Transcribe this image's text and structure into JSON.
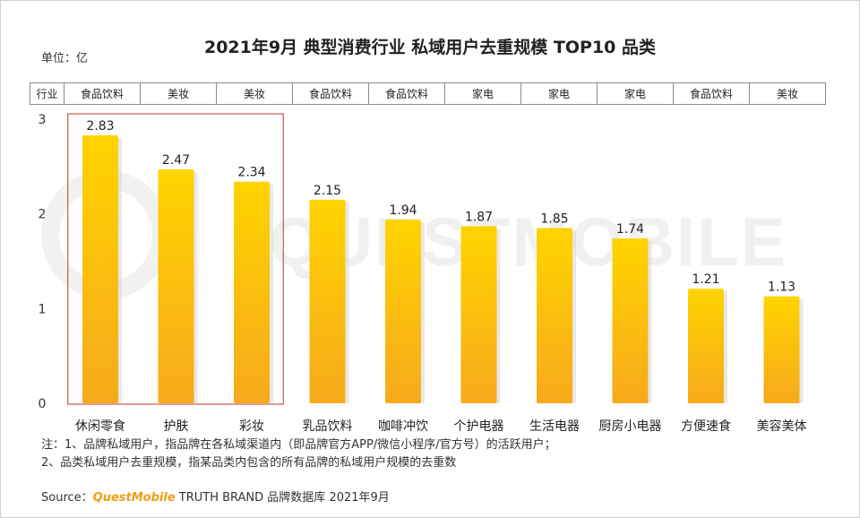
{
  "title": "2021年9月 典型消费行业 私域用户去重规模 TOP10 品类",
  "unit_label": "单位：亿",
  "industry_row": {
    "header": "行业",
    "values": [
      "食品饮料",
      "美妆",
      "美妆",
      "食品饮料",
      "食品饮料",
      "家电",
      "家电",
      "家电",
      "食品饮料",
      "美妆"
    ]
  },
  "watermark_text": "QUESTMOBILE",
  "notes": [
    "注：1、品牌私域用户，指品牌在各私域渠道内（即品牌官方APP/微信小程序/官方号）的活跃用户；",
    "2、品类私域用户去重规模，指某品类内包含的所有品牌的私域用户规模的去重数"
  ],
  "source": {
    "prefix": "Source：",
    "brand": "QuestMobile",
    "suffix": " TRUTH BRAND 品牌数据库 2021年9月"
  },
  "colors": {
    "bar_top": "#FFD400",
    "bar_bottom": "#F7A91C",
    "highlight_box": "#C0392B",
    "brand": "#F39C12"
  },
  "chart_data": {
    "type": "bar",
    "categories": [
      "休闲零食",
      "护肤",
      "彩妆",
      "乳品饮料",
      "咖啡冲饮",
      "个护电器",
      "生活电器",
      "厨房小电器",
      "方便速食",
      "美容美体"
    ],
    "values": [
      2.83,
      2.47,
      2.34,
      2.15,
      1.94,
      1.87,
      1.85,
      1.74,
      1.21,
      1.13
    ],
    "data_labels": [
      "2.83",
      "2.47",
      "2.34",
      "2.15",
      "1.94",
      "1.87",
      "1.85",
      "1.74",
      "1.21",
      "1.13"
    ],
    "ylim": [
      0,
      3
    ],
    "yticks": [
      "0",
      "1",
      "2",
      "3"
    ],
    "grid": false,
    "highlighted_categories": [
      "休闲零食",
      "护肤",
      "彩妆"
    ]
  }
}
